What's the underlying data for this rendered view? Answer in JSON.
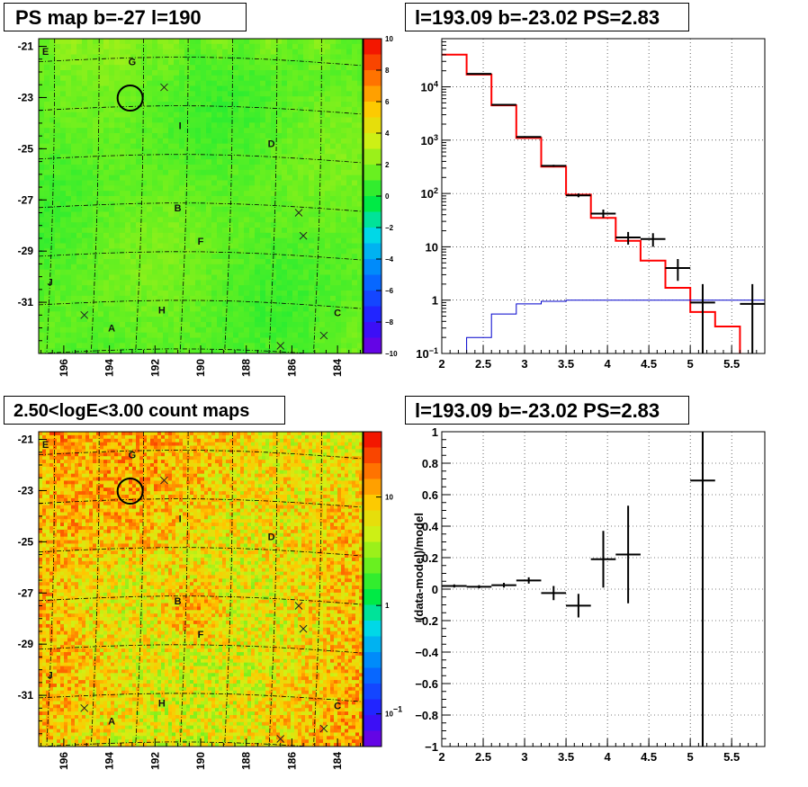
{
  "colors": {
    "model_red": "#ff0000",
    "data_black": "#000000",
    "flux_blue": "#0000cc"
  },
  "chart_data": [
    {
      "id": "ps_map",
      "type": "heatmap",
      "title": "PS map b=-27 l=190",
      "xlabel": "",
      "ylabel": "",
      "x_ticks": [
        "196",
        "194",
        "192",
        "190",
        "188",
        "186",
        "184"
      ],
      "y_ticks": [
        "-21",
        "-23",
        "-25",
        "-27",
        "-29",
        "-31"
      ],
      "xlim": [
        197.1,
        182.9
      ],
      "ylim": [
        -33.0,
        -20.7
      ],
      "colorbar": {
        "range": [
          -10,
          10
        ],
        "ticks": [
          "10",
          "8",
          "6",
          "4",
          "2",
          "0",
          "−2",
          "−4",
          "−6",
          "−8",
          "−10"
        ]
      },
      "sources": [
        {
          "label": "E",
          "l": 196.8,
          "b": -21.2
        },
        {
          "label": "G",
          "l": 193.0,
          "b": -21.6
        },
        {
          "label": "I",
          "l": 190.9,
          "b": -24.1
        },
        {
          "label": "D",
          "l": 186.9,
          "b": -24.8
        },
        {
          "label": "B",
          "l": 191.0,
          "b": -27.3
        },
        {
          "label": "F",
          "l": 190.0,
          "b": -28.6
        },
        {
          "label": "J",
          "l": 196.6,
          "b": -30.2
        },
        {
          "label": "H",
          "l": 191.7,
          "b": -31.3
        },
        {
          "label": "A",
          "l": 193.9,
          "b": -32.0
        },
        {
          "label": "C",
          "l": 184.0,
          "b": -31.4
        }
      ],
      "crosses": [
        {
          "l": 191.6,
          "b": -22.6
        },
        {
          "l": 185.7,
          "b": -27.5
        },
        {
          "l": 185.5,
          "b": -28.4
        },
        {
          "l": 195.1,
          "b": -31.5
        },
        {
          "l": 186.5,
          "b": -32.7
        },
        {
          "l": 184.6,
          "b": -32.3
        }
      ],
      "circle": {
        "l": 193.09,
        "b": -23.02
      }
    },
    {
      "id": "spectrum",
      "type": "line",
      "title": "l=193.09 b=-23.02 PS=2.83",
      "xlabel": "",
      "ylabel": "",
      "x_ticks": [
        "2",
        "2.5",
        "3",
        "3.5",
        "4",
        "4.5",
        "5",
        "5.5"
      ],
      "y_ticks": [
        "10^-1",
        "1",
        "10",
        "10^2",
        "10^3",
        "10^4"
      ],
      "xlim": [
        2.0,
        5.9
      ],
      "ylim": [
        0.1,
        80000
      ],
      "log_y": true,
      "grid": true,
      "series": [
        {
          "name": "",
          "style": "step",
          "color": "#ff0000",
          "edges": [
            2.0,
            2.3,
            2.6,
            2.9,
            3.2,
            3.5,
            3.8,
            4.1,
            4.4,
            4.7,
            5.0,
            5.3,
            5.6,
            5.9
          ],
          "values": [
            40000,
            17000,
            4500,
            1100,
            320,
            95,
            35,
            13,
            5.5,
            1.7,
            0.6,
            0.32,
            0.09
          ]
        },
        {
          "name": "",
          "style": "step",
          "color": "#0000cc",
          "edges": [
            2.0,
            2.3,
            2.6,
            2.9,
            3.2,
            3.5,
            3.8,
            4.1,
            4.4,
            4.7,
            5.0,
            5.3,
            5.6,
            5.9
          ],
          "values": [
            0.09,
            0.2,
            0.55,
            0.85,
            0.95,
            1.0,
            1.0,
            1.0,
            1.0,
            1.0,
            1.0,
            1.0,
            1.0
          ]
        },
        {
          "name": "",
          "style": "errorbar",
          "color": "#000000",
          "x": [
            2.45,
            2.75,
            3.05,
            3.35,
            3.65,
            3.95,
            4.25,
            4.55,
            4.85,
            5.15,
            5.75
          ],
          "y": [
            17500,
            4600,
            1150,
            330,
            92,
            42,
            15,
            14,
            4.0,
            0.9,
            0.85
          ],
          "ylow": [
            17300,
            4500,
            1120,
            315,
            85,
            35,
            11,
            10,
            2.3,
            0.1,
            0.1
          ],
          "yhigh": [
            17700,
            4700,
            1180,
            345,
            100,
            50,
            19,
            18,
            5.9,
            2.0,
            2.0
          ]
        }
      ]
    },
    {
      "id": "count_map",
      "type": "heatmap",
      "title": "2.50<logE<3.00 count maps",
      "xlabel": "",
      "ylabel": "",
      "x_ticks": [
        "196",
        "194",
        "192",
        "190",
        "188",
        "186",
        "184"
      ],
      "y_ticks": [
        "-21",
        "-23",
        "-25",
        "-27",
        "-29",
        "-31"
      ],
      "xlim": [
        197.1,
        182.9
      ],
      "ylim": [
        -33.0,
        -20.7
      ],
      "colorbar": {
        "range": [
          0.05,
          40
        ],
        "log": true,
        "ticks": [
          "10",
          "1",
          "10^-1"
        ]
      },
      "sources": [
        {
          "label": "E",
          "l": 196.8,
          "b": -21.2
        },
        {
          "label": "G",
          "l": 193.0,
          "b": -21.6
        },
        {
          "label": "I",
          "l": 190.9,
          "b": -24.1
        },
        {
          "label": "D",
          "l": 186.9,
          "b": -24.8
        },
        {
          "label": "B",
          "l": 191.0,
          "b": -27.3
        },
        {
          "label": "F",
          "l": 190.0,
          "b": -28.6
        },
        {
          "label": "J",
          "l": 196.6,
          "b": -30.2
        },
        {
          "label": "H",
          "l": 191.7,
          "b": -31.3
        },
        {
          "label": "A",
          "l": 193.9,
          "b": -32.0
        },
        {
          "label": "C",
          "l": 184.0,
          "b": -31.4
        }
      ],
      "crosses": [
        {
          "l": 191.6,
          "b": -22.6
        },
        {
          "l": 185.7,
          "b": -27.5
        },
        {
          "l": 185.5,
          "b": -28.4
        },
        {
          "l": 195.1,
          "b": -31.5
        },
        {
          "l": 186.5,
          "b": -32.7
        },
        {
          "l": 184.6,
          "b": -32.3
        }
      ],
      "circle": {
        "l": 193.09,
        "b": -23.02
      }
    },
    {
      "id": "residual",
      "type": "scatter",
      "title": "l=193.09 b=-23.02 PS=2.83",
      "xlabel": "",
      "ylabel": "(data-model)/model",
      "x_ticks": [
        "2",
        "2.5",
        "3",
        "3.5",
        "4",
        "4.5",
        "5",
        "5.5"
      ],
      "y_ticks": [
        "1",
        "0.8",
        "0.6",
        "0.4",
        "0.2",
        "0",
        "−0.2",
        "−0.4",
        "−0.6",
        "−0.8",
        "−1"
      ],
      "xlim": [
        2.0,
        5.9
      ],
      "ylim": [
        -1.0,
        1.0
      ],
      "grid": true,
      "series": [
        {
          "name": "",
          "style": "errorbar",
          "color": "#000000",
          "x": [
            2.15,
            2.45,
            2.75,
            3.05,
            3.35,
            3.65,
            3.95,
            4.25,
            5.15
          ],
          "xerr": 0.15,
          "y": [
            0.02,
            0.015,
            0.025,
            0.055,
            -0.025,
            -0.105,
            0.19,
            0.22,
            0.69
          ],
          "ylow": [
            0.01,
            0.005,
            0.01,
            0.035,
            -0.07,
            -0.18,
            0.01,
            -0.09,
            -1.0
          ],
          "yhigh": [
            0.03,
            0.025,
            0.04,
            0.075,
            0.02,
            -0.03,
            0.37,
            0.53,
            1.0
          ]
        }
      ]
    }
  ]
}
